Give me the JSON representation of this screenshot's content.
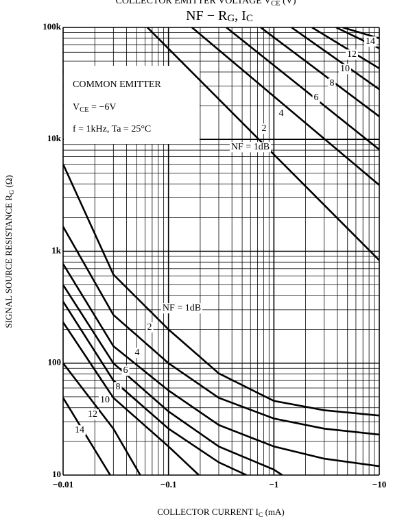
{
  "chart_data": {
    "type": "line",
    "top_text_parts": [
      "COLLECTOR EMITTER VOLTAGE  V",
      "CE",
      "  (V)"
    ],
    "title_parts": [
      "NF − R",
      "G",
      ", I",
      "C"
    ],
    "x_label_parts": [
      "COLLECTOR CURRENT  I",
      "C",
      "  (mA)"
    ],
    "y_label_parts": [
      "SIGNAL SOURCE RESISTANCE  R",
      "G",
      "  (Ω)"
    ],
    "annotation": {
      "line1": "COMMON EMITTER",
      "line2_parts": [
        "V",
        "CE",
        " = −6V"
      ],
      "line3": "f = 1kHz, Ta = 25°C"
    },
    "log_x": true,
    "log_y": true,
    "grid": true,
    "xlim": [
      -0.01,
      -10
    ],
    "xticks": [
      {
        "value": -0.01,
        "label": "−0.01"
      },
      {
        "value": -0.1,
        "label": "−0.1"
      },
      {
        "value": -1,
        "label": "−1"
      },
      {
        "value": -10,
        "label": "−10"
      }
    ],
    "ylim": [
      10,
      100000
    ],
    "yticks": [
      10,
      100,
      {
        "value": 1000,
        "label": "1k"
      },
      {
        "value": 10000,
        "label": "10k"
      },
      {
        "value": 100000,
        "label": "100k"
      }
    ],
    "series": [
      {
        "name": "NF = 1dB",
        "color": "#000000",
        "x": [
          -0.063,
          -10
        ],
        "values": [
          100000,
          830
        ]
      },
      {
        "name": "2",
        "color": "#000000",
        "x": [
          -0.167,
          -10
        ],
        "values": [
          100000,
          3900
        ]
      },
      {
        "name": "4",
        "color": "#000000",
        "x": [
          -0.354,
          -10
        ],
        "values": [
          100000,
          8100
        ]
      },
      {
        "name": "6",
        "color": "#000000",
        "x": [
          -0.748,
          -10
        ],
        "values": [
          100000,
          16000
        ]
      },
      {
        "name": "8",
        "color": "#000000",
        "x": [
          -1.47,
          -10
        ],
        "values": [
          100000,
          28000
        ]
      },
      {
        "name": "10",
        "color": "#000000",
        "x": [
          -2.3,
          -10
        ],
        "values": [
          100000,
          43000
        ]
      },
      {
        "name": "12",
        "color": "#000000",
        "x": [
          -3.89,
          -10
        ],
        "values": [
          100000,
          65000
        ]
      },
      {
        "name": "14",
        "color": "#000000",
        "x": [
          -4.5,
          -10
        ],
        "values": [
          100000,
          80000
        ]
      },
      {
        "name": "NF = 1dB",
        "color": "#000000",
        "x": [
          -0.01,
          -0.03,
          -0.1,
          -0.3,
          -1,
          -3,
          -10
        ],
        "values": [
          6000,
          620,
          200,
          81,
          46,
          38,
          34
        ]
      },
      {
        "name": "2",
        "color": "#000000",
        "x": [
          -0.01,
          -0.03,
          -0.1,
          -0.3,
          -1,
          -3,
          -10
        ],
        "values": [
          1660,
          270,
          100,
          49,
          32,
          26,
          23
        ]
      },
      {
        "name": "4",
        "color": "#000000",
        "x": [
          -0.01,
          -0.03,
          -0.1,
          -0.3,
          -1,
          -3,
          -10
        ],
        "values": [
          770,
          142,
          57,
          28,
          18,
          14,
          12
        ]
      },
      {
        "name": "6",
        "color": "#000000",
        "x": [
          -0.01,
          -0.03,
          -0.1,
          -0.3,
          -1,
          -1.2
        ],
        "values": [
          500,
          100,
          37,
          18,
          11.2,
          10
        ]
      },
      {
        "name": "8",
        "color": "#000000",
        "x": [
          -0.01,
          -0.03,
          -0.1,
          -0.3,
          -0.55
        ],
        "values": [
          355,
          70,
          26,
          13,
          10
        ]
      },
      {
        "name": "10",
        "color": "#000000",
        "x": [
          -0.01,
          -0.03,
          -0.1,
          -0.194
        ],
        "values": [
          232,
          49,
          18,
          10
        ]
      },
      {
        "name": "12",
        "color": "#000000",
        "x": [
          -0.01,
          -0.03,
          -0.054
        ],
        "values": [
          100,
          26,
          10
        ]
      },
      {
        "name": "14",
        "color": "#000000",
        "x": [
          -0.01,
          -0.028
        ],
        "values": [
          49,
          10
        ]
      }
    ]
  }
}
